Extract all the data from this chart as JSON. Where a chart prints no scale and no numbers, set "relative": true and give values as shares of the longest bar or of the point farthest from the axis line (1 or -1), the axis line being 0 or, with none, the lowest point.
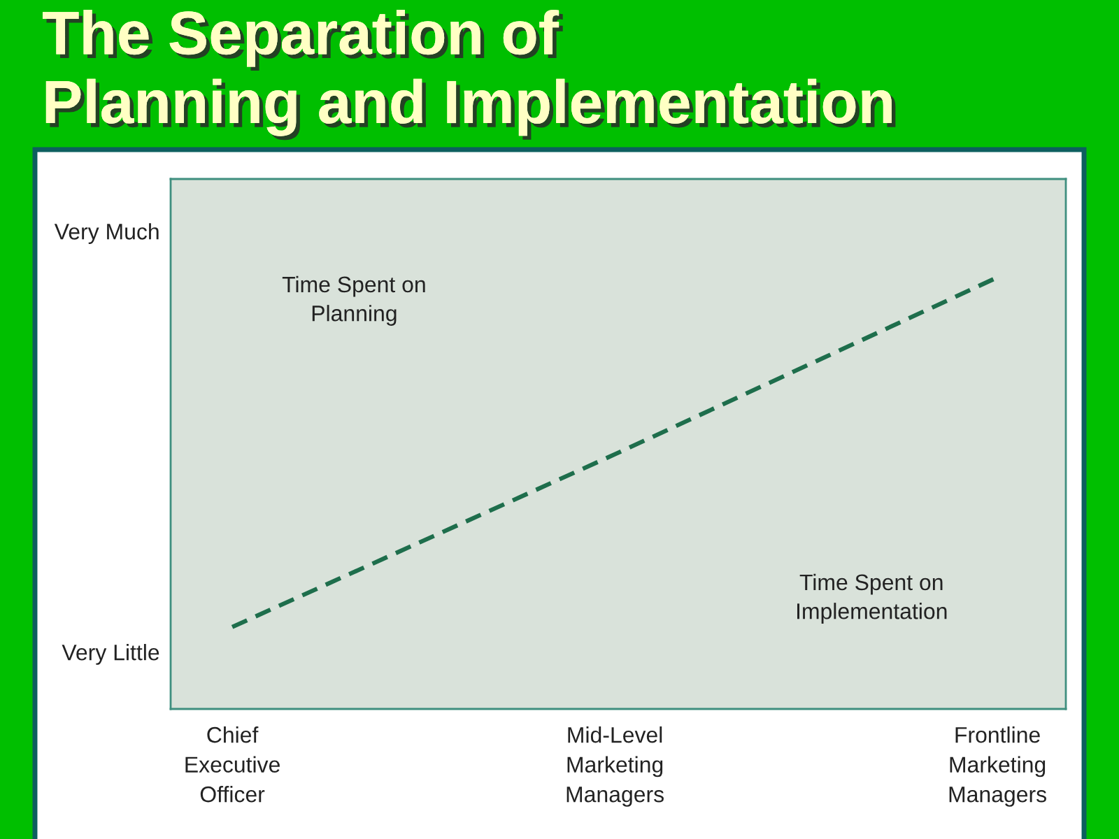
{
  "chart_data": {
    "type": "line",
    "title": "The Separation of\nPlanning and Implementation",
    "categories": [
      "Chief\nExecutive\nOfficer",
      "Mid-Level\nMarketing\nManagers",
      "Frontline\nMarketing\nManagers"
    ],
    "relative": true,
    "series": [
      {
        "values": [
          0.19,
          0.59,
          1
        ],
        "color": "#1e6e4c",
        "line_style": "dashed"
      }
    ],
    "annotations": [
      "Very Much",
      "Time Spent on\nPlanning",
      "Time Spent on\nImplementation",
      "Very Little"
    ]
  }
}
